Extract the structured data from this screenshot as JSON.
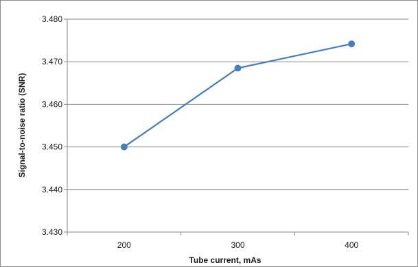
{
  "chart_data": {
    "type": "line",
    "title": "",
    "xlabel": "Tube current, mAs",
    "ylabel": "Signal-to-noise ratio (SNR)",
    "categories": [
      "200",
      "300",
      "400"
    ],
    "series": [
      {
        "values": [
          3.45,
          3.4685,
          3.4742
        ],
        "color": "#4a7ebb"
      }
    ],
    "ylim": [
      3.43,
      3.48
    ],
    "yticks": [
      "3.430",
      "3.440",
      "3.450",
      "3.460",
      "3.470",
      "3.480"
    ],
    "grid": "horizontal",
    "legend": "none"
  }
}
